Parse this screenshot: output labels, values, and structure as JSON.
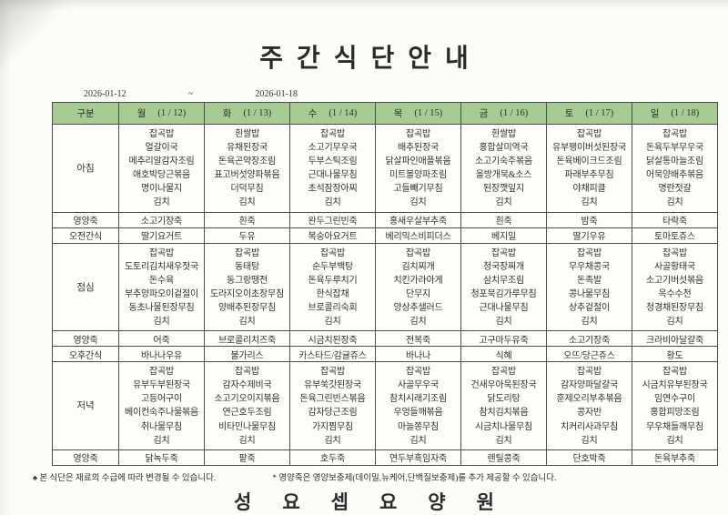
{
  "title": "주간식단안내",
  "date_range": {
    "start": "2026-01-12",
    "tilde": "~",
    "end": "2026-01-18"
  },
  "colors": {
    "header_green": "#a6cb93",
    "border": "#4d4d4d",
    "text": "#2f2f2f"
  },
  "table": {
    "corner_label": "구분",
    "days": [
      {
        "label": "월",
        "date": "(1 / 12)"
      },
      {
        "label": "화",
        "date": "(1 / 13)"
      },
      {
        "label": "수",
        "date": "(1 / 14)"
      },
      {
        "label": "목",
        "date": "(1 / 15)"
      },
      {
        "label": "금",
        "date": "(1 / 16)"
      },
      {
        "label": "토",
        "date": "(1 / 17)"
      },
      {
        "label": "일",
        "date": "(1 / 18)"
      }
    ],
    "rows": [
      {
        "label": "아침",
        "cells": [
          [
            "잡곡밥",
            "얼갈이국",
            "메추리알감자조림",
            "애호박당근볶음",
            "명이나물지",
            "김치"
          ],
          [
            "흰쌀밥",
            "유채된장국",
            "돈육곤약장조림",
            "표고버섯양파볶음",
            "더덕무침",
            "김치"
          ],
          [
            "잡곡밥",
            "소고기무우국",
            "두부스틱조림",
            "근대나물무침",
            "초석잠장아찌",
            "김치"
          ],
          [
            "잡곡밥",
            "배추된장국",
            "닭살파인애플볶음",
            "미트볼양파조림",
            "고들빼기무침",
            "김치"
          ],
          [
            "흰쌀밥",
            "홍합살미역국",
            "소고기숙주볶음",
            "올방개묵&소스",
            "된장깻잎지",
            "김치"
          ],
          [
            "잡곡밥",
            "유부팽이버섯된장국",
            "돈육베이크드조림",
            "파래부추무침",
            "야채피클",
            "김치"
          ],
          [
            "잡곡밥",
            "돈육두부무우국",
            "닭살통마늘조림",
            "어묵양배추볶음",
            "명란젓갈",
            "김치"
          ]
        ]
      },
      {
        "label": "영양죽",
        "cells": [
          "소고기장죽",
          "흰죽",
          "완두그린빈죽",
          "홍새우살부추죽",
          "흰죽",
          "밤죽",
          "타락죽"
        ]
      },
      {
        "label": "오전간식",
        "cells": [
          "딸기요거트",
          "두유",
          "복숭아요거트",
          "베리믹스비피더스",
          "베지밀",
          "딸기우유",
          "토마토쥬스"
        ]
      },
      {
        "label": "점심",
        "cells": [
          [
            "잡곡밥",
            "도토리김치새우젓국",
            "돈수육",
            "부추양파오이겉절이",
            "동초나물된장무침",
            "김치"
          ],
          [
            "잡곡밥",
            "동태탕",
            "동그랑땡전",
            "도라지오이초장무침",
            "양배추된장무침",
            "김치"
          ],
          [
            "잡곡밥",
            "순두부백탕",
            "돈육두루치기",
            "한식잡채",
            "브로콜리숙회",
            "김치"
          ],
          [
            "잡곡밥",
            "김치찌개",
            "치킨가라아게",
            "단무지",
            "양상추샐러드",
            "김치"
          ],
          [
            "잡곡밥",
            "청국장찌개",
            "삼치무조림",
            "청포묵김가루무침",
            "근대나물무침",
            "김치"
          ],
          [
            "잡곡밥",
            "무우채콩국",
            "돈족발",
            "콩나물무침",
            "상추겉절이",
            "김치"
          ],
          [
            "잡곡밥",
            "사골황태국",
            "소고기버섯볶음",
            "옥수수전",
            "청경채된장무침",
            "김치"
          ]
        ]
      },
      {
        "label": "영양죽",
        "cells": [
          "어죽",
          "브로콜리치즈죽",
          "시금치된장죽",
          "전복죽",
          "고구마두유죽",
          "소고기장죽",
          "크라비아달걀죽"
        ]
      },
      {
        "label": "오후간식",
        "cells": [
          "바나나우유",
          "불가리스",
          "카스타드/감귤쥬스",
          "바나나",
          "식혜",
          "오뜨/당근쥬스",
          "황도"
        ]
      },
      {
        "label": "저녁",
        "cells": [
          [
            "잡곡밥",
            "유부두부된장국",
            "고등어구이",
            "베이컨숙주나물볶음",
            "취나물무침",
            "김치"
          ],
          [
            "잡곡밥",
            "감자수제비국",
            "소고기오이지볶음",
            "연근호두조림",
            "비타민나물무침",
            "김치"
          ],
          [
            "잡곡밥",
            "유부쑥갓된장국",
            "돈육그린빈스볶음",
            "감자당근조림",
            "가지찜무침",
            "김치"
          ],
          [
            "잡곡밥",
            "사골무우국",
            "참치시래기조림",
            "우엉들깨볶음",
            "마늘쫑무침",
            "김치"
          ],
          [
            "잡곡밥",
            "건새우아욱된장국",
            "닭도리탕",
            "참치김치볶음",
            "시금치나물무침",
            "김치"
          ],
          [
            "잡곡밥",
            "감자양파달걀국",
            "훈제오리부추볶음",
            "콩자반",
            "치커리사과무침",
            "김치"
          ],
          [
            "잡곡밥",
            "시금치유부된장국",
            "임연수구이",
            "홍합피망조림",
            "무우채들깨무침",
            "김치"
          ]
        ]
      },
      {
        "label": "영양죽",
        "cells": [
          "닭녹두죽",
          "팥죽",
          "호두죽",
          "연두부흑임자죽",
          "렌틸콩죽",
          "단호박죽",
          "돈육부추죽"
        ]
      }
    ]
  },
  "footnotes": {
    "left": "♠ 본 식단은 재료의 수급에 따라 변경될 수 있습니다.",
    "right": "* 영양죽은 영양보충제(데이밀,뉴케어,단백질보충제)를 추가 제공할 수 있습니다."
  },
  "facility_name": "성요셉요양원"
}
